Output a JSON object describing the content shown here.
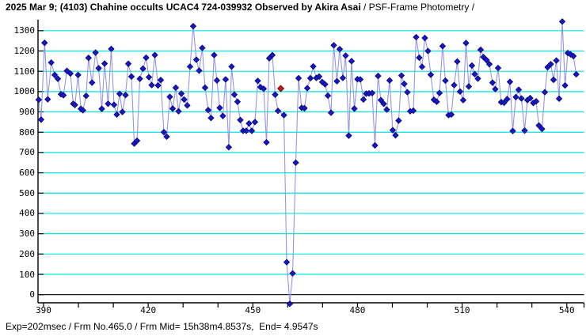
{
  "title": {
    "main": "2025 Mar 9; (4103) Chahine occults UCAC4 724-039932 Observed by Akira Asai",
    "suffix": " / PSF-Frame Photometry /"
  },
  "footer": {
    "text": "Exp=202msec / Frm No.465.0 / Frm Mid= 15h38m4.8537s,  End= 4.9547s"
  },
  "chart_data": {
    "type": "scatter",
    "title": "2025 Mar 9; (4103) Chahine occults UCAC4 724-039932 Observed by Akira Asai / PSF-Frame Photometry /",
    "xlabel": "",
    "ylabel": "",
    "x_axis": {
      "min": 388,
      "max": 556,
      "labeled_ticks": [
        390,
        420,
        450,
        480,
        510,
        540
      ],
      "minor_ticks": [
        390,
        400,
        410,
        420,
        430,
        440,
        450,
        460,
        470,
        480,
        490,
        500,
        510,
        520,
        530,
        540
      ]
    },
    "y_axis": {
      "min": 0,
      "max": 1354,
      "tick_step": 100,
      "tick_labels": [
        0,
        100,
        200,
        300,
        400,
        500,
        600,
        700,
        800,
        900,
        1000,
        1100,
        1200,
        1300
      ]
    },
    "grid": {
      "horizontal": true,
      "vertical": false
    },
    "legend": "none",
    "colors": {
      "grid": "#00e6e6",
      "line": "#9494e6",
      "marker": "#1818c0",
      "marker_edge": "#000080",
      "highlight": "#cc1414",
      "axis": "#000000",
      "background": "#ffffff"
    },
    "highlight_point": {
      "x": 458.0,
      "y": 1015,
      "meaning": "red marked frame"
    },
    "series": [
      {
        "name": "psf-frame-photometry-flux",
        "marker": "diamond",
        "points": [
          [
            388.6,
            960
          ],
          [
            389.3,
            862
          ],
          [
            390.3,
            1240
          ],
          [
            391.2,
            962
          ],
          [
            392.2,
            1143
          ],
          [
            393.2,
            1082
          ],
          [
            394.1,
            1063
          ],
          [
            395.0,
            987
          ],
          [
            395.7,
            982
          ],
          [
            396.7,
            1102
          ],
          [
            397.7,
            1089
          ],
          [
            398.5,
            940
          ],
          [
            399.0,
            934
          ],
          [
            399.9,
            1082
          ],
          [
            400.7,
            915
          ],
          [
            401.3,
            908
          ],
          [
            402.2,
            979
          ],
          [
            402.9,
            1166
          ],
          [
            403.9,
            1044
          ],
          [
            404.9,
            1192
          ],
          [
            405.8,
            1115
          ],
          [
            406.7,
            915
          ],
          [
            407.5,
            1138
          ],
          [
            408.5,
            940
          ],
          [
            409.4,
            1210
          ],
          [
            410.2,
            935
          ],
          [
            411.0,
            887
          ],
          [
            411.8,
            989
          ],
          [
            412.6,
            900
          ],
          [
            413.5,
            983
          ],
          [
            414.3,
            1137
          ],
          [
            415.2,
            1074
          ],
          [
            416.0,
            744
          ],
          [
            416.8,
            758
          ],
          [
            417.6,
            1063
          ],
          [
            418.5,
            1113
          ],
          [
            419.4,
            1167
          ],
          [
            420.2,
            1071
          ],
          [
            421.0,
            1032
          ],
          [
            421.9,
            1180
          ],
          [
            422.8,
            1030
          ],
          [
            423.6,
            1057
          ],
          [
            424.5,
            800
          ],
          [
            425.3,
            778
          ],
          [
            426.2,
            974
          ],
          [
            427.0,
            916
          ],
          [
            427.9,
            1019
          ],
          [
            428.7,
            903
          ],
          [
            429.5,
            990
          ],
          [
            430.3,
            961
          ],
          [
            431.2,
            932
          ],
          [
            432.0,
            1123
          ],
          [
            432.9,
            1322
          ],
          [
            433.8,
            1157
          ],
          [
            434.6,
            1103
          ],
          [
            435.5,
            1215
          ],
          [
            436.3,
            1019
          ],
          [
            437.2,
            909
          ],
          [
            438.0,
            870
          ],
          [
            438.9,
            1180
          ],
          [
            439.7,
            1055
          ],
          [
            440.5,
            920
          ],
          [
            441.4,
            880
          ],
          [
            442.2,
            1060
          ],
          [
            443.1,
            726
          ],
          [
            443.9,
            1123
          ],
          [
            444.7,
            985
          ],
          [
            445.6,
            950
          ],
          [
            446.4,
            860
          ],
          [
            447.2,
            807
          ],
          [
            448.1,
            807
          ],
          [
            448.9,
            843
          ],
          [
            449.7,
            807
          ],
          [
            450.6,
            850
          ],
          [
            451.4,
            1053
          ],
          [
            452.2,
            1022
          ],
          [
            453.1,
            1014
          ],
          [
            453.9,
            750
          ],
          [
            454.7,
            1164
          ],
          [
            455.6,
            1180
          ],
          [
            456.4,
            985
          ],
          [
            457.2,
            905
          ],
          [
            458.9,
            884
          ],
          [
            459.7,
            160
          ],
          [
            460.6,
            -45
          ],
          [
            461.4,
            105
          ],
          [
            462.3,
            650
          ],
          [
            463.1,
            1066
          ],
          [
            464.0,
            920
          ],
          [
            464.8,
            918
          ],
          [
            465.6,
            1017
          ],
          [
            466.5,
            1066
          ],
          [
            467.3,
            1124
          ],
          [
            468.2,
            1067
          ],
          [
            469.0,
            1074
          ],
          [
            469.9,
            1047
          ],
          [
            470.7,
            1036
          ],
          [
            471.5,
            980
          ],
          [
            472.4,
            896
          ],
          [
            473.2,
            1228
          ],
          [
            474.1,
            1051
          ],
          [
            474.9,
            1209
          ],
          [
            475.8,
            1067
          ],
          [
            476.6,
            1177
          ],
          [
            477.5,
            783
          ],
          [
            478.3,
            1150
          ],
          [
            479.1,
            916
          ],
          [
            480.0,
            1061
          ],
          [
            480.8,
            1060
          ],
          [
            481.7,
            961
          ],
          [
            482.5,
            990
          ],
          [
            483.3,
            991
          ],
          [
            484.2,
            993
          ],
          [
            485.0,
            735
          ],
          [
            485.9,
            1077
          ],
          [
            486.7,
            958
          ],
          [
            487.5,
            940
          ],
          [
            488.4,
            911
          ],
          [
            489.2,
            1055
          ],
          [
            490.1,
            810
          ],
          [
            490.9,
            785
          ],
          [
            491.8,
            857
          ],
          [
            492.6,
            1079
          ],
          [
            493.4,
            1038
          ],
          [
            494.3,
            997
          ],
          [
            495.1,
            903
          ],
          [
            496.0,
            906
          ],
          [
            496.8,
            1268
          ],
          [
            497.7,
            1167
          ],
          [
            498.5,
            1122
          ],
          [
            499.3,
            1264
          ],
          [
            500.2,
            1200
          ],
          [
            501.0,
            1083
          ],
          [
            501.9,
            960
          ],
          [
            502.7,
            950
          ],
          [
            503.5,
            993
          ],
          [
            504.4,
            1224
          ],
          [
            505.2,
            1054
          ],
          [
            506.1,
            884
          ],
          [
            506.9,
            887
          ],
          [
            507.7,
            1032
          ],
          [
            508.6,
            1148
          ],
          [
            509.4,
            1000
          ],
          [
            510.3,
            958
          ],
          [
            511.1,
            1239
          ],
          [
            511.9,
            1025
          ],
          [
            512.8,
            1128
          ],
          [
            513.6,
            1086
          ],
          [
            514.5,
            1064
          ],
          [
            515.3,
            1206
          ],
          [
            516.1,
            1170
          ],
          [
            517.0,
            1155
          ],
          [
            517.8,
            1135
          ],
          [
            518.7,
            1044
          ],
          [
            519.5,
            1012
          ],
          [
            520.3,
            1116
          ],
          [
            521.2,
            948
          ],
          [
            522.0,
            945
          ],
          [
            522.9,
            963
          ],
          [
            523.7,
            1048
          ],
          [
            524.5,
            806
          ],
          [
            525.4,
            973
          ],
          [
            526.2,
            1009
          ],
          [
            527.0,
            966
          ],
          [
            527.9,
            808
          ],
          [
            528.7,
            958
          ],
          [
            529.5,
            968
          ],
          [
            530.4,
            944
          ],
          [
            531.2,
            952
          ],
          [
            532.0,
            833
          ],
          [
            532.9,
            816
          ],
          [
            533.7,
            997
          ],
          [
            534.5,
            1120
          ],
          [
            535.4,
            1135
          ],
          [
            536.2,
            1058
          ],
          [
            537.0,
            1153
          ],
          [
            537.8,
            965
          ],
          [
            538.7,
            1345
          ],
          [
            539.5,
            1030
          ],
          [
            540.3,
            1190
          ],
          [
            541.1,
            1183
          ],
          [
            541.9,
            1175
          ],
          [
            542.7,
            1085
          ]
        ]
      }
    ]
  }
}
